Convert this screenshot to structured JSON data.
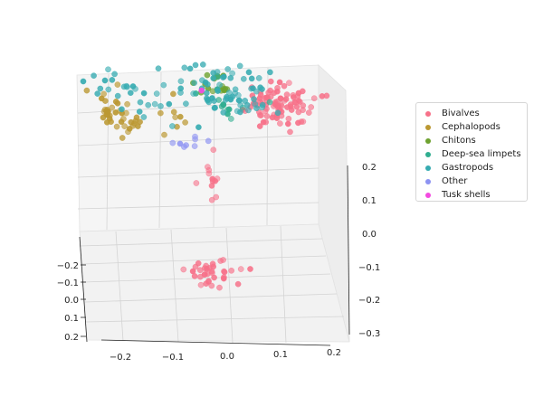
{
  "chart_data": {
    "type": "scatter",
    "projection": "3d",
    "title": "",
    "xlabel": "",
    "ylabel": "",
    "zlabel": "",
    "grid": true,
    "legend_position": "right",
    "x_ticks": [
      "−0.2",
      "−0.1",
      "0.0",
      "0.1",
      "0.2"
    ],
    "y_ticks": [
      "−0.2",
      "−0.1",
      "0.0",
      "0.1",
      "0.2"
    ],
    "z_ticks": [
      "−0.3",
      "−0.2",
      "−0.1",
      "0.0",
      "0.1",
      "0.2"
    ],
    "xlim": [
      -0.26,
      0.26
    ],
    "ylim": [
      -0.24,
      0.22
    ],
    "zlim": [
      -0.32,
      0.25
    ],
    "series": [
      {
        "name": "Bivalves",
        "color": "#f77189",
        "clusters": [
          {
            "center": [
              0.16,
              0.0,
              0.15
            ],
            "spread": [
              0.035,
              0.03,
              0.03
            ],
            "count": 90
          },
          {
            "center": [
              0.02,
              0.12,
              -0.02
            ],
            "spread": [
              0.01,
              0.01,
              0.05
            ],
            "count": 12
          },
          {
            "center": [
              0.02,
              0.15,
              -0.26
            ],
            "spread": [
              0.03,
              0.015,
              0.015
            ],
            "count": 35
          }
        ]
      },
      {
        "name": "Cephalopods",
        "color": "#bb9832",
        "clusters": [
          {
            "center": [
              -0.21,
              -0.04,
              0.12
            ],
            "spread": [
              0.015,
              0.02,
              0.02
            ],
            "count": 22
          },
          {
            "center": [
              -0.17,
              0.02,
              0.1
            ],
            "spread": [
              0.02,
              0.03,
              0.02
            ],
            "count": 18
          },
          {
            "center": [
              -0.07,
              0.03,
              0.14
            ],
            "spread": [
              0.015,
              0.02,
              0.03
            ],
            "count": 8
          }
        ]
      },
      {
        "name": "Chitons",
        "color": "#6ea230",
        "clusters": [
          {
            "center": [
              0.02,
              -0.02,
              0.19
            ],
            "spread": [
              0.025,
              0.02,
              0.02
            ],
            "count": 16
          }
        ]
      },
      {
        "name": "Deep-sea limpets",
        "color": "#30ae90",
        "clusters": [
          {
            "center": [
              0.04,
              0.0,
              0.17
            ],
            "spread": [
              0.03,
              0.03,
              0.03
            ],
            "count": 14
          }
        ]
      },
      {
        "name": "Gastropods",
        "color": "#36abb1",
        "clusters": [
          {
            "center": [
              0.06,
              -0.02,
              0.17
            ],
            "spread": [
              0.04,
              0.03,
              0.04
            ],
            "count": 60
          },
          {
            "center": [
              -0.03,
              -0.08,
              0.25
            ],
            "spread": [
              0.03,
              0.03,
              0.04
            ],
            "count": 20
          },
          {
            "center": [
              -0.17,
              -0.05,
              0.16
            ],
            "spread": [
              0.06,
              0.04,
              0.04
            ],
            "count": 40
          }
        ]
      },
      {
        "name": "Other",
        "color": "#8d93f2",
        "clusters": [
          {
            "center": [
              -0.03,
              0.08,
              0.08
            ],
            "spread": [
              0.02,
              0.01,
              0.01
            ],
            "count": 8
          }
        ]
      },
      {
        "name": "Tusk shells",
        "color": "#f34be0",
        "clusters": [
          {
            "center": [
              -0.01,
              -0.01,
              0.18
            ],
            "spread": [
              0.005,
              0.005,
              0.005
            ],
            "count": 1
          }
        ]
      }
    ]
  }
}
